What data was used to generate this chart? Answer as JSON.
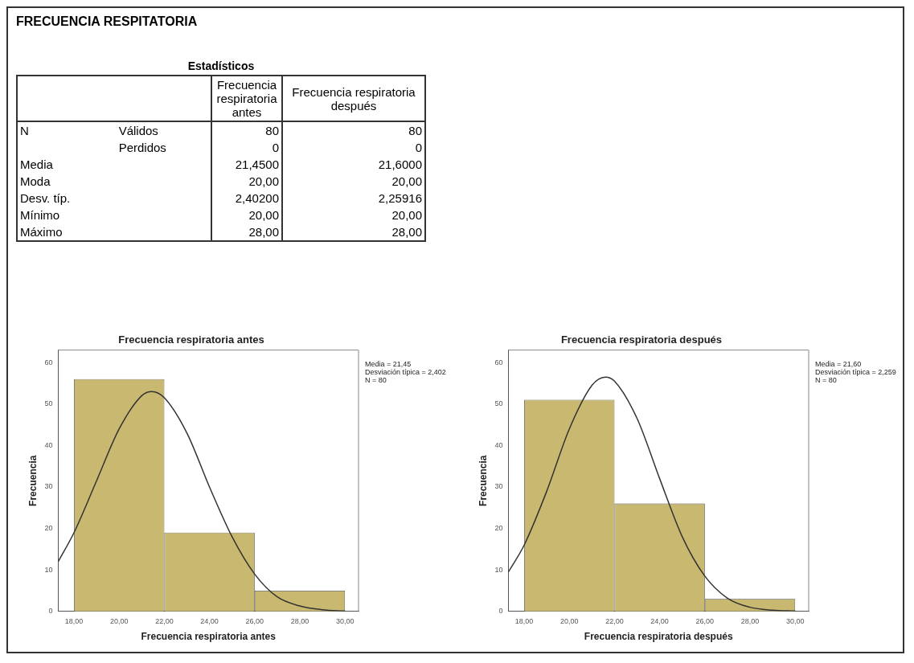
{
  "chart_data": [
    {
      "type": "other",
      "title": "FRECUENCIA RESPITATORIA",
      "subtitle": "Estadísticos",
      "categories": [
        "Frecuencia respiratoria antes",
        "Frecuencia respiratoria después"
      ],
      "y_categories": [
        "N",
        null,
        "Media",
        "Moda",
        "Desv. típ.",
        "Mínimo",
        "Máximo"
      ],
      "y2_categories": [
        "Válidos",
        "Perdidos",
        null,
        null,
        null,
        null,
        null
      ],
      "cells": [
        [
          "80",
          "80"
        ],
        [
          "0",
          "0"
        ],
        [
          "21,4500",
          "21,6000"
        ],
        [
          "20,00",
          "20,00"
        ],
        [
          "2,40200",
          "2,25916"
        ],
        [
          "20,00",
          "20,00"
        ],
        [
          "28,00",
          "28,00"
        ]
      ]
    },
    {
      "type": "histogram",
      "title": "Frecuencia respiratoria antes",
      "xlabel": "Frecuencia respiratoria antes",
      "ylabel": "Frecuencia",
      "bins": [
        18,
        22,
        26,
        30
      ],
      "values": [
        56,
        19,
        5
      ],
      "color": "#c9b870",
      "series": [
        {
          "type": "line",
          "color": "#333333",
          "x": [
            17.3,
            18,
            19,
            20,
            21,
            21.45,
            22,
            23,
            24,
            25,
            26,
            27,
            28,
            29,
            30
          ],
          "values": [
            12,
            19,
            31.5,
            44,
            52,
            53,
            51.5,
            43,
            30,
            18,
            9,
            3.5,
            1.3,
            0.4,
            0.1
          ]
        }
      ],
      "xlim": [
        17.3,
        30.6
      ],
      "xticks": [
        {
          "value": 18,
          "label": "18,00"
        },
        {
          "value": 20,
          "label": "20,00"
        },
        {
          "value": 22,
          "label": "22,00"
        },
        {
          "value": 24,
          "label": "24,00"
        },
        {
          "value": 26,
          "label": "26,00"
        },
        {
          "value": 28,
          "label": "28,00"
        },
        {
          "value": 30,
          "label": "30,00"
        }
      ],
      "ylim": [
        0,
        63
      ],
      "yticks": [
        0,
        10,
        20,
        30,
        40,
        50,
        60
      ],
      "annotations": [
        "Media = 21,45",
        "Desviación típica = 2,402",
        "N = 80"
      ]
    },
    {
      "type": "histogram",
      "title": "Frecuencia respiratoria después",
      "xlabel": "Frecuencia respiratoria después",
      "ylabel": "Frecuencia",
      "bins": [
        18,
        22,
        26,
        30
      ],
      "values": [
        51,
        26,
        3
      ],
      "color": "#c9b870",
      "series": [
        {
          "type": "line",
          "color": "#333333",
          "x": [
            17.3,
            18,
            19,
            20,
            21,
            21.6,
            22,
            23,
            24,
            25,
            26,
            27,
            28,
            29,
            30
          ],
          "values": [
            9.5,
            16,
            29,
            44,
            54.5,
            56.5,
            55.5,
            46.5,
            32,
            18,
            8.5,
            3.2,
            1,
            0.3,
            0.1
          ]
        }
      ],
      "xlim": [
        17.3,
        30.6
      ],
      "xticks": [
        {
          "value": 18,
          "label": "18,00"
        },
        {
          "value": 20,
          "label": "20,00"
        },
        {
          "value": 22,
          "label": "22,00"
        },
        {
          "value": 24,
          "label": "24,00"
        },
        {
          "value": 26,
          "label": "26,00"
        },
        {
          "value": 28,
          "label": "28,00"
        },
        {
          "value": 30,
          "label": "30,00"
        }
      ],
      "ylim": [
        0,
        63
      ],
      "yticks": [
        0,
        10,
        20,
        30,
        40,
        50,
        60
      ],
      "annotations": [
        "Media = 21,60",
        "Desviación típica = 2,259",
        "N = 80"
      ]
    }
  ]
}
